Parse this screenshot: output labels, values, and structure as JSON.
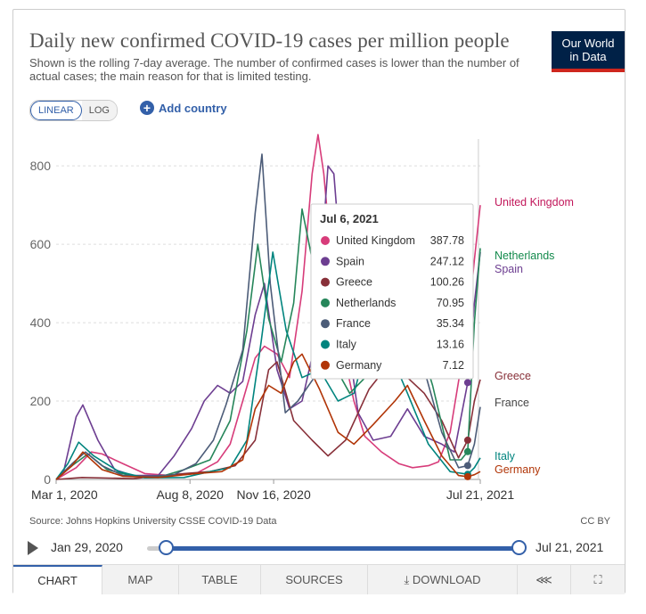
{
  "header": {
    "title": "Daily new confirmed COVID-19 cases per million people",
    "subtitle": "Shown is the rolling 7-day average. The number of confirmed cases is lower than the number of actual cases; the main reason for that is limited testing.",
    "logo_line1": "Our World",
    "logo_line2": "in Data"
  },
  "controls": {
    "linear_label": "LINEAR",
    "log_label": "LOG",
    "add_country_label": "Add country"
  },
  "chart_data": {
    "type": "line",
    "title": "Daily new confirmed COVID-19 cases per million people",
    "ylabel": "",
    "xlabel": "",
    "ylim": [
      0,
      880
    ],
    "xlim": [
      "2020-03-01",
      "2021-07-21"
    ],
    "y_ticks": [
      "0",
      "200",
      "400",
      "600",
      "800"
    ],
    "x_ticks": [
      "Mar 1, 2020",
      "Aug 8, 2020",
      "Nov 16, 2020",
      "Jul 21, 2021"
    ],
    "grid": true,
    "highlight_date": "2021-07-06",
    "series": [
      {
        "name": "United Kingdom",
        "color": "#d73c7a",
        "label_color": "#c2185b",
        "points": [
          [
            "2020-03-01",
            0
          ],
          [
            "2020-03-25",
            30
          ],
          [
            "2020-04-12",
            70
          ],
          [
            "2020-04-25",
            65
          ],
          [
            "2020-05-20",
            40
          ],
          [
            "2020-06-15",
            15
          ],
          [
            "2020-07-15",
            10
          ],
          [
            "2020-08-15",
            15
          ],
          [
            "2020-09-10",
            45
          ],
          [
            "2020-09-25",
            90
          ],
          [
            "2020-10-10",
            200
          ],
          [
            "2020-10-25",
            310
          ],
          [
            "2020-11-05",
            340
          ],
          [
            "2020-11-20",
            320
          ],
          [
            "2020-12-05",
            260
          ],
          [
            "2020-12-20",
            480
          ],
          [
            "2021-01-01",
            780
          ],
          [
            "2021-01-08",
            880
          ],
          [
            "2021-01-15",
            780
          ],
          [
            "2021-01-25",
            540
          ],
          [
            "2021-02-05",
            350
          ],
          [
            "2021-02-20",
            200
          ],
          [
            "2021-03-05",
            110
          ],
          [
            "2021-03-25",
            70
          ],
          [
            "2021-04-15",
            40
          ],
          [
            "2021-05-01",
            30
          ],
          [
            "2021-05-20",
            35
          ],
          [
            "2021-06-01",
            45
          ],
          [
            "2021-06-15",
            120
          ],
          [
            "2021-06-25",
            250
          ],
          [
            "2021-07-06",
            387.78
          ],
          [
            "2021-07-14",
            560
          ],
          [
            "2021-07-21",
            700
          ]
        ]
      },
      {
        "name": "Spain",
        "color": "#6d3e91",
        "label_color": "#6d3e91",
        "points": [
          [
            "2020-03-01",
            0
          ],
          [
            "2020-03-10",
            20
          ],
          [
            "2020-03-25",
            160
          ],
          [
            "2020-04-02",
            190
          ],
          [
            "2020-04-20",
            100
          ],
          [
            "2020-05-10",
            25
          ],
          [
            "2020-06-01",
            10
          ],
          [
            "2020-07-01",
            10
          ],
          [
            "2020-07-20",
            60
          ],
          [
            "2020-08-10",
            130
          ],
          [
            "2020-08-25",
            200
          ],
          [
            "2020-09-10",
            240
          ],
          [
            "2020-09-25",
            220
          ],
          [
            "2020-10-10",
            250
          ],
          [
            "2020-10-25",
            420
          ],
          [
            "2020-11-05",
            500
          ],
          [
            "2020-11-20",
            280
          ],
          [
            "2020-12-05",
            180
          ],
          [
            "2020-12-20",
            200
          ],
          [
            "2021-01-05",
            350
          ],
          [
            "2021-01-20",
            800
          ],
          [
            "2021-01-27",
            780
          ],
          [
            "2021-02-10",
            400
          ],
          [
            "2021-02-25",
            170
          ],
          [
            "2021-03-15",
            100
          ],
          [
            "2021-04-05",
            110
          ],
          [
            "2021-04-25",
            180
          ],
          [
            "2021-05-15",
            110
          ],
          [
            "2021-06-05",
            90
          ],
          [
            "2021-06-20",
            70
          ],
          [
            "2021-07-06",
            247.12
          ],
          [
            "2021-07-14",
            450
          ],
          [
            "2021-07-21",
            580
          ]
        ]
      },
      {
        "name": "Greece",
        "color": "#883039",
        "label_color": "#883039",
        "points": [
          [
            "2020-03-01",
            0
          ],
          [
            "2020-04-01",
            5
          ],
          [
            "2020-06-01",
            2
          ],
          [
            "2020-08-01",
            15
          ],
          [
            "2020-09-01",
            20
          ],
          [
            "2020-10-01",
            35
          ],
          [
            "2020-10-25",
            100
          ],
          [
            "2020-11-10",
            280
          ],
          [
            "2020-11-20",
            300
          ],
          [
            "2020-12-10",
            150
          ],
          [
            "2021-01-01",
            100
          ],
          [
            "2021-01-20",
            60
          ],
          [
            "2021-02-10",
            100
          ],
          [
            "2021-03-10",
            230
          ],
          [
            "2021-04-05",
            300
          ],
          [
            "2021-04-25",
            260
          ],
          [
            "2021-05-15",
            220
          ],
          [
            "2021-06-05",
            150
          ],
          [
            "2021-06-25",
            55
          ],
          [
            "2021-07-06",
            100.26
          ],
          [
            "2021-07-14",
            200
          ],
          [
            "2021-07-21",
            255
          ]
        ]
      },
      {
        "name": "Netherlands",
        "color": "#26865a",
        "label_color": "#138a4c",
        "points": [
          [
            "2020-03-01",
            0
          ],
          [
            "2020-03-20",
            35
          ],
          [
            "2020-04-08",
            65
          ],
          [
            "2020-05-01",
            25
          ],
          [
            "2020-06-01",
            8
          ],
          [
            "2020-07-01",
            5
          ],
          [
            "2020-08-01",
            25
          ],
          [
            "2020-09-01",
            50
          ],
          [
            "2020-09-25",
            150
          ],
          [
            "2020-10-15",
            380
          ],
          [
            "2020-10-28",
            600
          ],
          [
            "2020-11-10",
            410
          ],
          [
            "2020-11-25",
            300
          ],
          [
            "2020-12-10",
            450
          ],
          [
            "2020-12-20",
            690
          ],
          [
            "2021-01-05",
            520
          ],
          [
            "2021-01-25",
            300
          ],
          [
            "2021-02-15",
            220
          ],
          [
            "2021-03-10",
            270
          ],
          [
            "2021-03-25",
            340
          ],
          [
            "2021-04-15",
            420
          ],
          [
            "2021-05-05",
            380
          ],
          [
            "2021-05-25",
            240
          ],
          [
            "2021-06-15",
            50
          ],
          [
            "2021-06-28",
            50
          ],
          [
            "2021-07-06",
            70.95
          ],
          [
            "2021-07-14",
            400
          ],
          [
            "2021-07-21",
            590
          ]
        ]
      },
      {
        "name": "France",
        "color": "#4c5c78",
        "label_color": "#444",
        "points": [
          [
            "2020-03-01",
            0
          ],
          [
            "2020-03-20",
            40
          ],
          [
            "2020-04-05",
            70
          ],
          [
            "2020-04-25",
            35
          ],
          [
            "2020-05-20",
            10
          ],
          [
            "2020-06-20",
            8
          ],
          [
            "2020-07-20",
            12
          ],
          [
            "2020-08-15",
            40
          ],
          [
            "2020-09-05",
            100
          ],
          [
            "2020-09-20",
            190
          ],
          [
            "2020-10-10",
            330
          ],
          [
            "2020-10-25",
            680
          ],
          [
            "2020-11-02",
            830
          ],
          [
            "2020-11-12",
            500
          ],
          [
            "2020-11-30",
            170
          ],
          [
            "2020-12-15",
            200
          ],
          [
            "2021-01-10",
            280
          ],
          [
            "2021-02-01",
            300
          ],
          [
            "2021-02-20",
            290
          ],
          [
            "2021-03-15",
            420
          ],
          [
            "2021-04-10",
            560
          ],
          [
            "2021-04-25",
            450
          ],
          [
            "2021-05-15",
            280
          ],
          [
            "2021-06-05",
            120
          ],
          [
            "2021-06-25",
            30
          ],
          [
            "2021-07-06",
            35.34
          ],
          [
            "2021-07-14",
            90
          ],
          [
            "2021-07-21",
            185
          ]
        ]
      },
      {
        "name": "Italy",
        "color": "#00847e",
        "label_color": "#00847e",
        "points": [
          [
            "2020-03-01",
            0
          ],
          [
            "2020-03-15",
            40
          ],
          [
            "2020-03-28",
            95
          ],
          [
            "2020-04-15",
            60
          ],
          [
            "2020-05-15",
            20
          ],
          [
            "2020-06-15",
            4
          ],
          [
            "2020-08-01",
            5
          ],
          [
            "2020-09-01",
            20
          ],
          [
            "2020-09-25",
            30
          ],
          [
            "2020-10-15",
            100
          ],
          [
            "2020-11-01",
            350
          ],
          [
            "2020-11-15",
            580
          ],
          [
            "2020-12-01",
            380
          ],
          [
            "2020-12-20",
            260
          ],
          [
            "2021-01-10",
            280
          ],
          [
            "2021-02-01",
            200
          ],
          [
            "2021-02-20",
            220
          ],
          [
            "2021-03-15",
            400
          ],
          [
            "2021-04-05",
            320
          ],
          [
            "2021-04-25",
            220
          ],
          [
            "2021-05-20",
            90
          ],
          [
            "2021-06-15",
            20
          ],
          [
            "2021-07-06",
            13.16
          ],
          [
            "2021-07-14",
            30
          ],
          [
            "2021-07-21",
            55
          ]
        ]
      },
      {
        "name": "Germany",
        "color": "#b13507",
        "label_color": "#b13507",
        "points": [
          [
            "2020-03-01",
            0
          ],
          [
            "2020-03-20",
            35
          ],
          [
            "2020-04-02",
            70
          ],
          [
            "2020-04-25",
            25
          ],
          [
            "2020-05-20",
            8
          ],
          [
            "2020-07-01",
            5
          ],
          [
            "2020-08-15",
            15
          ],
          [
            "2020-09-15",
            20
          ],
          [
            "2020-10-10",
            50
          ],
          [
            "2020-10-25",
            180
          ],
          [
            "2020-11-10",
            240
          ],
          [
            "2020-11-25",
            220
          ],
          [
            "2020-12-10",
            300
          ],
          [
            "2020-12-20",
            320
          ],
          [
            "2021-01-10",
            230
          ],
          [
            "2021-02-01",
            120
          ],
          [
            "2021-02-20",
            90
          ],
          [
            "2021-03-15",
            140
          ],
          [
            "2021-04-10",
            200
          ],
          [
            "2021-04-25",
            240
          ],
          [
            "2021-05-15",
            150
          ],
          [
            "2021-06-05",
            60
          ],
          [
            "2021-06-25",
            10
          ],
          [
            "2021-07-06",
            7.12
          ],
          [
            "2021-07-14",
            12
          ],
          [
            "2021-07-21",
            20
          ]
        ]
      }
    ],
    "tooltip": {
      "date": "Jul 6, 2021",
      "rows": [
        {
          "name": "United Kingdom",
          "value": "387.78",
          "color": "#d73c7a"
        },
        {
          "name": "Spain",
          "value": "247.12",
          "color": "#6d3e91"
        },
        {
          "name": "Greece",
          "value": "100.26",
          "color": "#883039"
        },
        {
          "name": "Netherlands",
          "value": "70.95",
          "color": "#26865a"
        },
        {
          "name": "France",
          "value": "35.34",
          "color": "#4c5c78"
        },
        {
          "name": "Italy",
          "value": "13.16",
          "color": "#00847e"
        },
        {
          "name": "Germany",
          "value": "7.12",
          "color": "#b13507"
        }
      ]
    }
  },
  "footer": {
    "source": "Source: Johns Hopkins University CSSE COVID-19 Data",
    "license": "CC BY"
  },
  "timeline": {
    "start_label": "Jan 29, 2020",
    "end_label": "Jul 21, 2021"
  },
  "tabs": {
    "chart": "CHART",
    "map": "MAP",
    "table": "TABLE",
    "sources": "SOURCES",
    "download": "DOWNLOAD"
  },
  "icons": {
    "share": "share-icon",
    "fullscreen": "fullscreen-icon",
    "download": "download-icon",
    "play": "play-icon",
    "add": "plus-icon"
  }
}
